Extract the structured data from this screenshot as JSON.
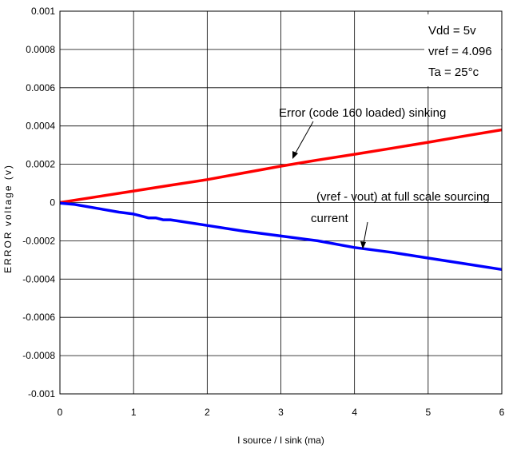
{
  "chart_data": {
    "type": "line",
    "title": "",
    "xlabel": "I source / I sink (ma)",
    "ylabel": "ERROR voltage (v)",
    "xlim": [
      0,
      6
    ],
    "ylim": [
      -0.001,
      0.001
    ],
    "x_ticks": [
      "0",
      "1",
      "2",
      "3",
      "4",
      "5",
      "6"
    ],
    "y_ticks": [
      "0.001",
      "0.0008",
      "0.0006",
      "0.0004",
      "0.0002",
      "0",
      "-0.0002",
      "-0.0004",
      "-0.0006",
      "-0.0008",
      "-0.001"
    ],
    "grid": true,
    "conditions": [
      "Vdd = 5v",
      "vref = 4.096",
      "Ta = 25°c"
    ],
    "series": [
      {
        "color": "#ff0000",
        "x": [
          0,
          0.5,
          1,
          1.5,
          2,
          2.5,
          3,
          3.5,
          4,
          4.5,
          5,
          5.5,
          6
        ],
        "y": [
          0,
          3e-05,
          6e-05,
          9e-05,
          0.00012,
          0.000155,
          0.00019,
          0.000222,
          0.000252,
          0.000283,
          0.000315,
          0.000348,
          0.00038
        ]
      },
      {
        "color": "#0000ff",
        "x": [
          0,
          0.2,
          0.5,
          0.8,
          1.0,
          1.1,
          1.2,
          1.3,
          1.4,
          1.5,
          2,
          2.5,
          3,
          3.5,
          4,
          4.5,
          5,
          5.5,
          6
        ],
        "y": [
          -3e-06,
          -1e-05,
          -3e-05,
          -5e-05,
          -6e-05,
          -7e-05,
          -8e-05,
          -8e-05,
          -9e-05,
          -9e-05,
          -0.00012,
          -0.00015,
          -0.000175,
          -0.0002,
          -0.000235,
          -0.00026,
          -0.00029,
          -0.00032,
          -0.00035
        ]
      }
    ],
    "annotations": [
      {
        "text": "Error (code 160 loaded) sinking"
      },
      {
        "text": "(vref - vout) at full scale sourcing"
      },
      {
        "text": "current"
      }
    ]
  }
}
